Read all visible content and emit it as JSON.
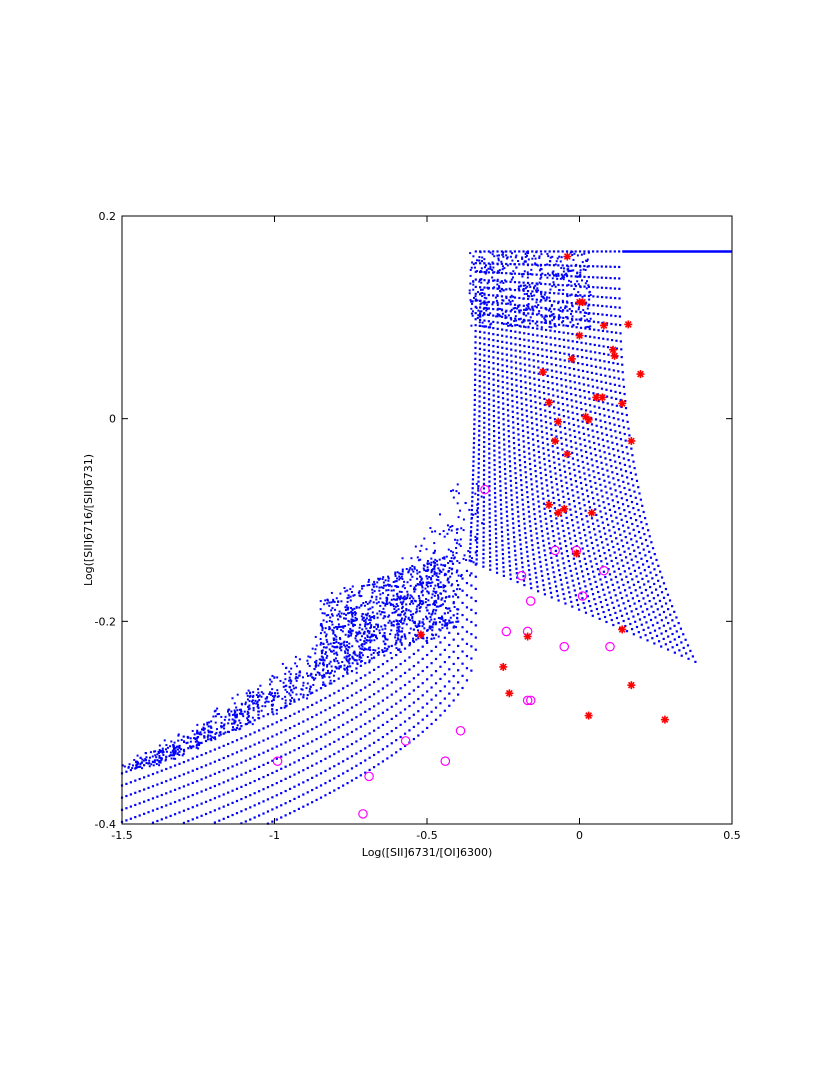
{
  "chart_data": {
    "type": "scatter",
    "title": "",
    "xlabel": "Log([SII]6731/[OI]6300)",
    "ylabel": "Log([SII]6716/[SII]6731)",
    "xlim": [
      -1.5,
      0.5
    ],
    "ylim": [
      -0.4,
      0.2
    ],
    "xticks": [
      -1.5,
      -1,
      -0.5,
      0,
      0.5
    ],
    "xtick_labels": [
      "-1.5",
      "-1",
      "-0.5",
      "0",
      "0.5"
    ],
    "yticks": [
      -0.4,
      -0.2,
      0,
      0.2
    ],
    "ytick_labels": [
      "-0.4",
      "-0.2",
      "0",
      "0.2"
    ],
    "grid": false,
    "legend": "none",
    "series": [
      {
        "marker": "dots",
        "color": "#0000ff",
        "description_of_data": "model grid",
        "points": []
      },
      {
        "marker": "asterisk",
        "color": "#ff0000",
        "points": [
          [
            -0.04,
            0.16
          ],
          [
            0.0,
            0.115
          ],
          [
            0.01,
            0.115
          ],
          [
            0.0,
            0.082
          ],
          [
            0.08,
            0.092
          ],
          [
            0.16,
            0.093
          ],
          [
            0.11,
            0.068
          ],
          [
            0.115,
            0.062
          ],
          [
            -0.025,
            0.059
          ],
          [
            -0.12,
            0.046
          ],
          [
            0.2,
            0.044
          ],
          [
            -0.1,
            0.016
          ],
          [
            0.055,
            0.021
          ],
          [
            0.075,
            0.021
          ],
          [
            0.14,
            0.015
          ],
          [
            0.02,
            0.002
          ],
          [
            0.03,
            -0.001
          ],
          [
            -0.07,
            -0.003
          ],
          [
            0.17,
            -0.022
          ],
          [
            -0.08,
            -0.022
          ],
          [
            -0.04,
            -0.035
          ],
          [
            -0.1,
            -0.085
          ],
          [
            -0.05,
            -0.089
          ],
          [
            -0.07,
            -0.093
          ],
          [
            0.04,
            -0.093
          ],
          [
            -0.01,
            -0.133
          ],
          [
            -0.52,
            -0.213
          ],
          [
            0.14,
            -0.208
          ],
          [
            -0.17,
            -0.215
          ],
          [
            -0.25,
            -0.245
          ],
          [
            -0.23,
            -0.271
          ],
          [
            0.17,
            -0.263
          ],
          [
            0.03,
            -0.293
          ],
          [
            0.28,
            -0.297
          ]
        ]
      },
      {
        "marker": "circle",
        "color": "#ff00ff",
        "points": [
          [
            -0.31,
            -0.07
          ],
          [
            -0.08,
            -0.13
          ],
          [
            -0.01,
            -0.13
          ],
          [
            -0.19,
            -0.155
          ],
          [
            0.08,
            -0.15
          ],
          [
            0.01,
            -0.175
          ],
          [
            -0.16,
            -0.18
          ],
          [
            -0.24,
            -0.21
          ],
          [
            -0.17,
            -0.21
          ],
          [
            -0.05,
            -0.225
          ],
          [
            0.1,
            -0.225
          ],
          [
            -0.17,
            -0.278
          ],
          [
            -0.16,
            -0.278
          ],
          [
            -0.39,
            -0.308
          ],
          [
            -0.57,
            -0.318
          ],
          [
            -0.99,
            -0.338
          ],
          [
            -0.44,
            -0.338
          ],
          [
            -0.69,
            -0.353
          ],
          [
            -0.71,
            -0.39
          ]
        ]
      }
    ]
  }
}
